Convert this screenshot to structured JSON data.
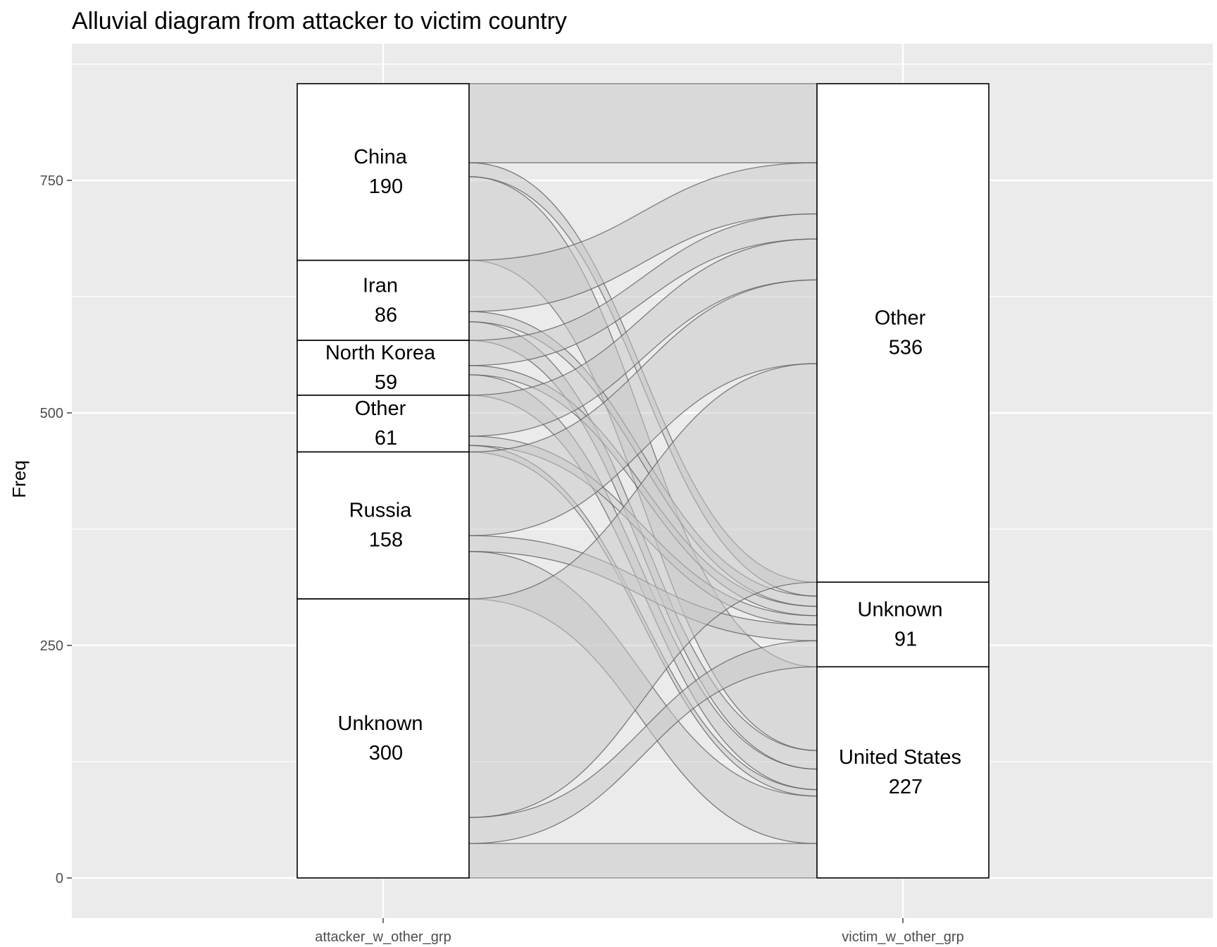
{
  "chart_data": {
    "type": "alluvial",
    "title": "Alluvial diagram from attacker to victim country",
    "ylabel": "Freq",
    "xlabel": "",
    "ylim": [
      -40,
      900
    ],
    "yticks": [
      0,
      250,
      500,
      750
    ],
    "axes": [
      "attacker_w_other_grp",
      "victim_w_other_grp"
    ],
    "strata": {
      "attacker_w_other_grp": [
        {
          "label": "China",
          "value": 190
        },
        {
          "label": "Iran",
          "value": 86
        },
        {
          "label": "North Korea",
          "value": 59
        },
        {
          "label": "Other",
          "value": 61
        },
        {
          "label": "Russia",
          "value": 158
        },
        {
          "label": "Unknown",
          "value": 300
        }
      ],
      "victim_w_other_grp": [
        {
          "label": "Other",
          "value": 536
        },
        {
          "label": "Unknown",
          "value": 91
        },
        {
          "label": "United States",
          "value": 227
        }
      ]
    },
    "flows": [
      {
        "from": "China",
        "to": "Other",
        "value": 85
      },
      {
        "from": "China",
        "to": "Unknown",
        "value": 15
      },
      {
        "from": "China",
        "to": "United States",
        "value": 90
      },
      {
        "from": "Iran",
        "to": "Other",
        "value": 55
      },
      {
        "from": "Iran",
        "to": "Unknown",
        "value": 11
      },
      {
        "from": "Iran",
        "to": "United States",
        "value": 20
      },
      {
        "from": "North Korea",
        "to": "Other",
        "value": 27
      },
      {
        "from": "North Korea",
        "to": "Unknown",
        "value": 10
      },
      {
        "from": "North Korea",
        "to": "United States",
        "value": 22
      },
      {
        "from": "Other",
        "to": "Other",
        "value": 44
      },
      {
        "from": "Other",
        "to": "Unknown",
        "value": 10
      },
      {
        "from": "Other",
        "to": "United States",
        "value": 7
      },
      {
        "from": "Russia",
        "to": "Other",
        "value": 90
      },
      {
        "from": "Russia",
        "to": "Unknown",
        "value": 17
      },
      {
        "from": "Russia",
        "to": "United States",
        "value": 51
      },
      {
        "from": "Unknown",
        "to": "Other",
        "value": 235
      },
      {
        "from": "Unknown",
        "to": "Unknown",
        "value": 28
      },
      {
        "from": "Unknown",
        "to": "United States",
        "value": 37
      }
    ],
    "colors": {
      "panel_background": "#ebebeb",
      "grid": "#ffffff",
      "flow_fill": "#c8c8c8",
      "flow_stroke": "#5a5a5a",
      "stratum_fill": "#ffffff",
      "stratum_stroke": "#000000"
    }
  }
}
